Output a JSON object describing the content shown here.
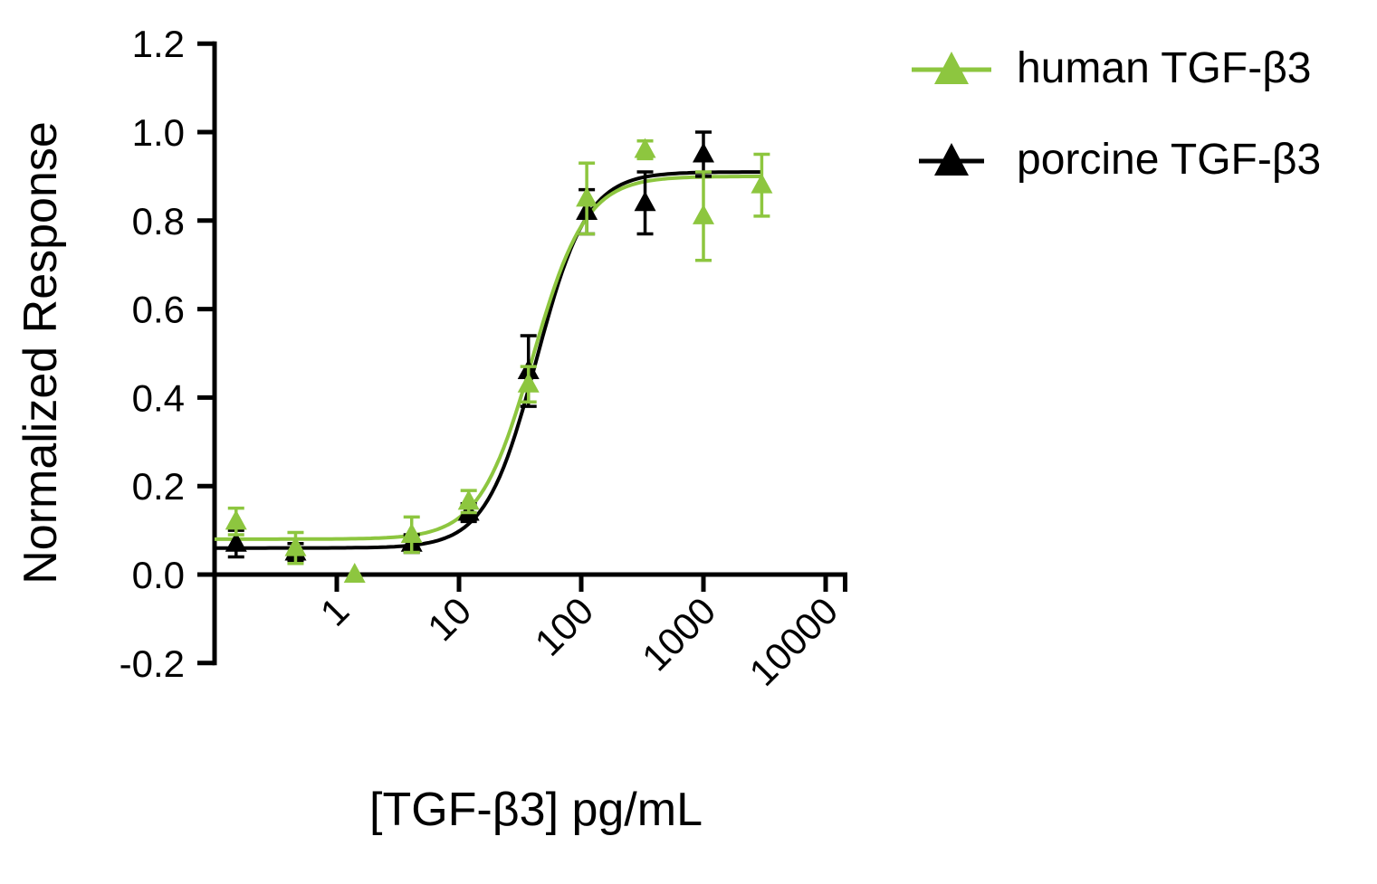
{
  "figure": {
    "background": "#ffffff",
    "text_color": "#000000"
  },
  "chart_data": {
    "type": "scatter",
    "subtype": "dose-response-curve-with-fit",
    "title": "",
    "xlabel": "[TGF-β3] pg/mL",
    "ylabel": "Normalized Response",
    "x_scale": "log10",
    "xlim": [
      0.1,
      15000
    ],
    "ylim": [
      -0.2,
      1.2
    ],
    "x_ticks": [
      1,
      10,
      100,
      1000,
      10000
    ],
    "x_tick_labels": [
      "1",
      "10",
      "100",
      "1000",
      "10000"
    ],
    "y_ticks": [
      -0.2,
      0,
      0.2,
      0.4,
      0.6,
      0.8,
      1,
      1.2
    ],
    "y_tick_labels": [
      "-0.2",
      "0.0",
      "0.2",
      "0.4",
      "0.6",
      "0.8",
      "1.0",
      "1.2"
    ],
    "grid": false,
    "axis_color": "#000000",
    "legend": {
      "position": "top-right"
    },
    "series": [
      {
        "name": "human TGF-β3",
        "color": "#8dc63f",
        "marker": "triangle-up",
        "points": [
          {
            "x": 0.15,
            "y": 0.12,
            "err": 0.03
          },
          {
            "x": 0.46,
            "y": 0.06,
            "err": 0.035
          },
          {
            "x": 1.4,
            "y": 0.0,
            "err": 0.01
          },
          {
            "x": 4.1,
            "y": 0.09,
            "err": 0.04
          },
          {
            "x": 12,
            "y": 0.165,
            "err": 0.025
          },
          {
            "x": 37,
            "y": 0.43,
            "err": 0.04
          },
          {
            "x": 111,
            "y": 0.85,
            "err": 0.08
          },
          {
            "x": 333,
            "y": 0.96,
            "err": 0.02
          },
          {
            "x": 1000,
            "y": 0.81,
            "err": 0.1
          },
          {
            "x": 3000,
            "y": 0.88,
            "err": 0.07
          }
        ],
        "fit_curve": {
          "model": "4PL",
          "bottom": 0.08,
          "top": 0.9,
          "ec50": 40,
          "hill": 2.0
        }
      },
      {
        "name": "porcine TGF-β3",
        "color": "#000000",
        "marker": "triangle-up",
        "points": [
          {
            "x": 0.15,
            "y": 0.07,
            "err": 0.03
          },
          {
            "x": 0.46,
            "y": 0.05,
            "err": 0.02
          },
          {
            "x": 4.1,
            "y": 0.07,
            "err": 0.02
          },
          {
            "x": 12,
            "y": 0.14,
            "err": 0.02
          },
          {
            "x": 37,
            "y": 0.46,
            "err": 0.08
          },
          {
            "x": 111,
            "y": 0.82,
            "err": 0.05
          },
          {
            "x": 333,
            "y": 0.84,
            "err": 0.07
          },
          {
            "x": 1000,
            "y": 0.95,
            "err": 0.05
          }
        ],
        "fit_curve": {
          "model": "4PL",
          "bottom": 0.06,
          "top": 0.91,
          "ec50": 43,
          "hill": 2.1
        }
      }
    ]
  }
}
